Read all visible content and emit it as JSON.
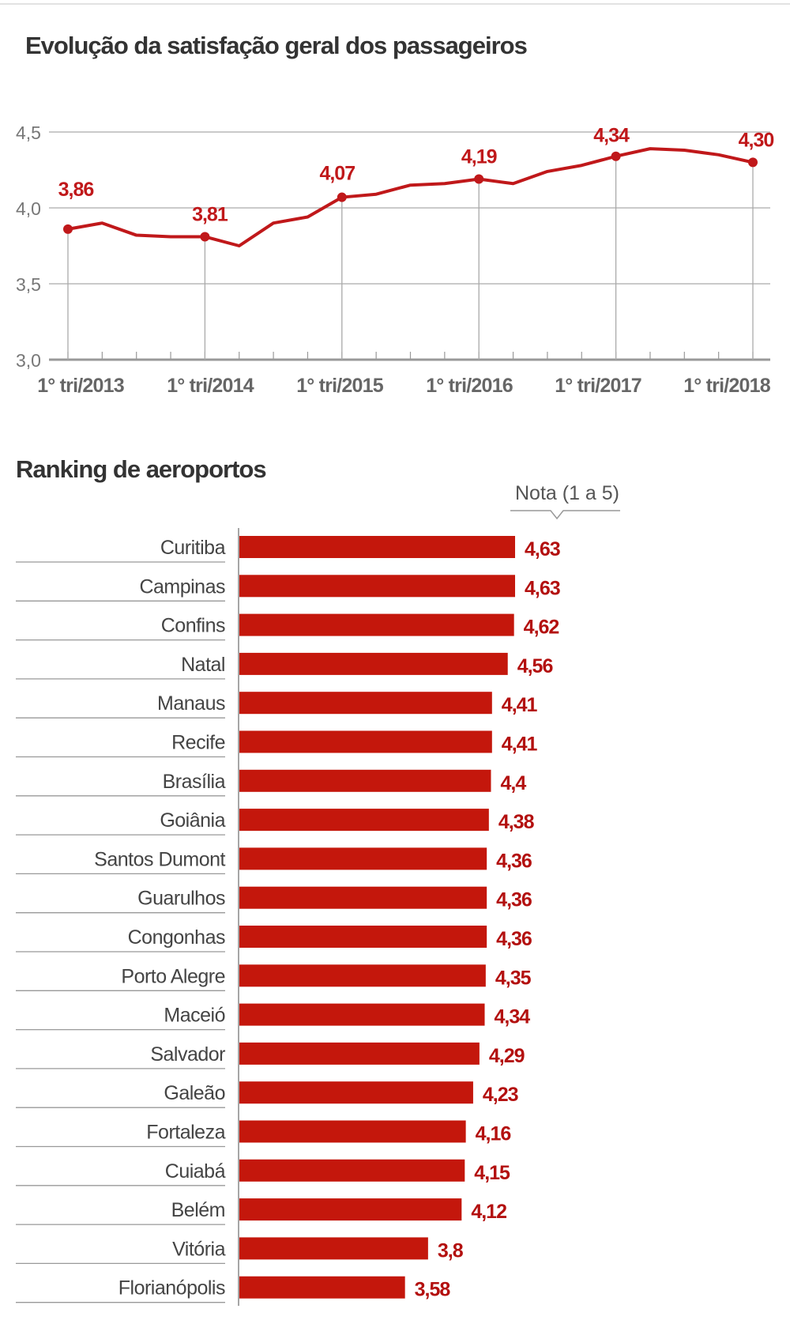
{
  "chart_data": [
    {
      "type": "line",
      "title": "Evolução da satisfação geral dos passageiros",
      "ylim": [
        3.0,
        4.5
      ],
      "yticks": [
        "3,0",
        "3,5",
        "4,0",
        "4,5"
      ],
      "ytick_values": [
        3.0,
        3.5,
        4.0,
        4.5
      ],
      "xtick_labels": [
        "1° tri/2013",
        "1° tri/2014",
        "1° tri/2015",
        "1° tri/2016",
        "1° tri/2017",
        "1° tri/2018"
      ],
      "x_quarters": [
        "1T2013",
        "2T2013",
        "3T2013",
        "4T2013",
        "1T2014",
        "2T2014",
        "3T2014",
        "4T2014",
        "1T2015",
        "2T2015",
        "3T2015",
        "4T2015",
        "1T2016",
        "2T2016",
        "3T2016",
        "4T2016",
        "1T2017",
        "2T2017",
        "3T2017",
        "4T2017",
        "1T2018"
      ],
      "values": [
        3.86,
        3.9,
        3.82,
        3.81,
        3.81,
        3.75,
        3.9,
        3.94,
        4.07,
        4.09,
        4.15,
        4.16,
        4.19,
        4.16,
        4.24,
        4.28,
        4.34,
        4.39,
        4.38,
        4.35,
        4.3
      ],
      "data_labels": [
        {
          "index": 0,
          "text": "3,86"
        },
        {
          "index": 4,
          "text": "3,81"
        },
        {
          "index": 8,
          "text": "4,07"
        },
        {
          "index": 12,
          "text": "4,19"
        },
        {
          "index": 16,
          "text": "4,34"
        },
        {
          "index": 20,
          "text": "4,30"
        }
      ],
      "grid": true,
      "color": "#c0181a"
    },
    {
      "type": "bar",
      "orientation": "horizontal",
      "title": "Ranking de aeroportos",
      "value_header": "Nota (1 a 5)",
      "categories": [
        "Curitiba",
        "Campinas",
        "Confins",
        "Natal",
        "Manaus",
        "Recife",
        "Brasília",
        "Goiânia",
        "Santos Dumont",
        "Guarulhos",
        "Congonhas",
        "Porto Alegre",
        "Maceió",
        "Salvador",
        "Galeão",
        "Fortaleza",
        "Cuiabá",
        "Belém",
        "Vitória",
        "Florianópolis"
      ],
      "values": [
        4.63,
        4.63,
        4.62,
        4.56,
        4.41,
        4.41,
        4.4,
        4.38,
        4.36,
        4.36,
        4.36,
        4.35,
        4.34,
        4.29,
        4.23,
        4.16,
        4.15,
        4.12,
        3.8,
        3.58
      ],
      "value_labels": [
        "4,63",
        "4,63",
        "4,62",
        "4,56",
        "4,41",
        "4,41",
        "4,4",
        "4,38",
        "4,36",
        "4,36",
        "4,36",
        "4,35",
        "4,34",
        "4,29",
        "4,23",
        "4,16",
        "4,15",
        "4,12",
        "3,8",
        "3,58"
      ],
      "color": "#c4170c",
      "label_color": "#b3100f"
    }
  ]
}
